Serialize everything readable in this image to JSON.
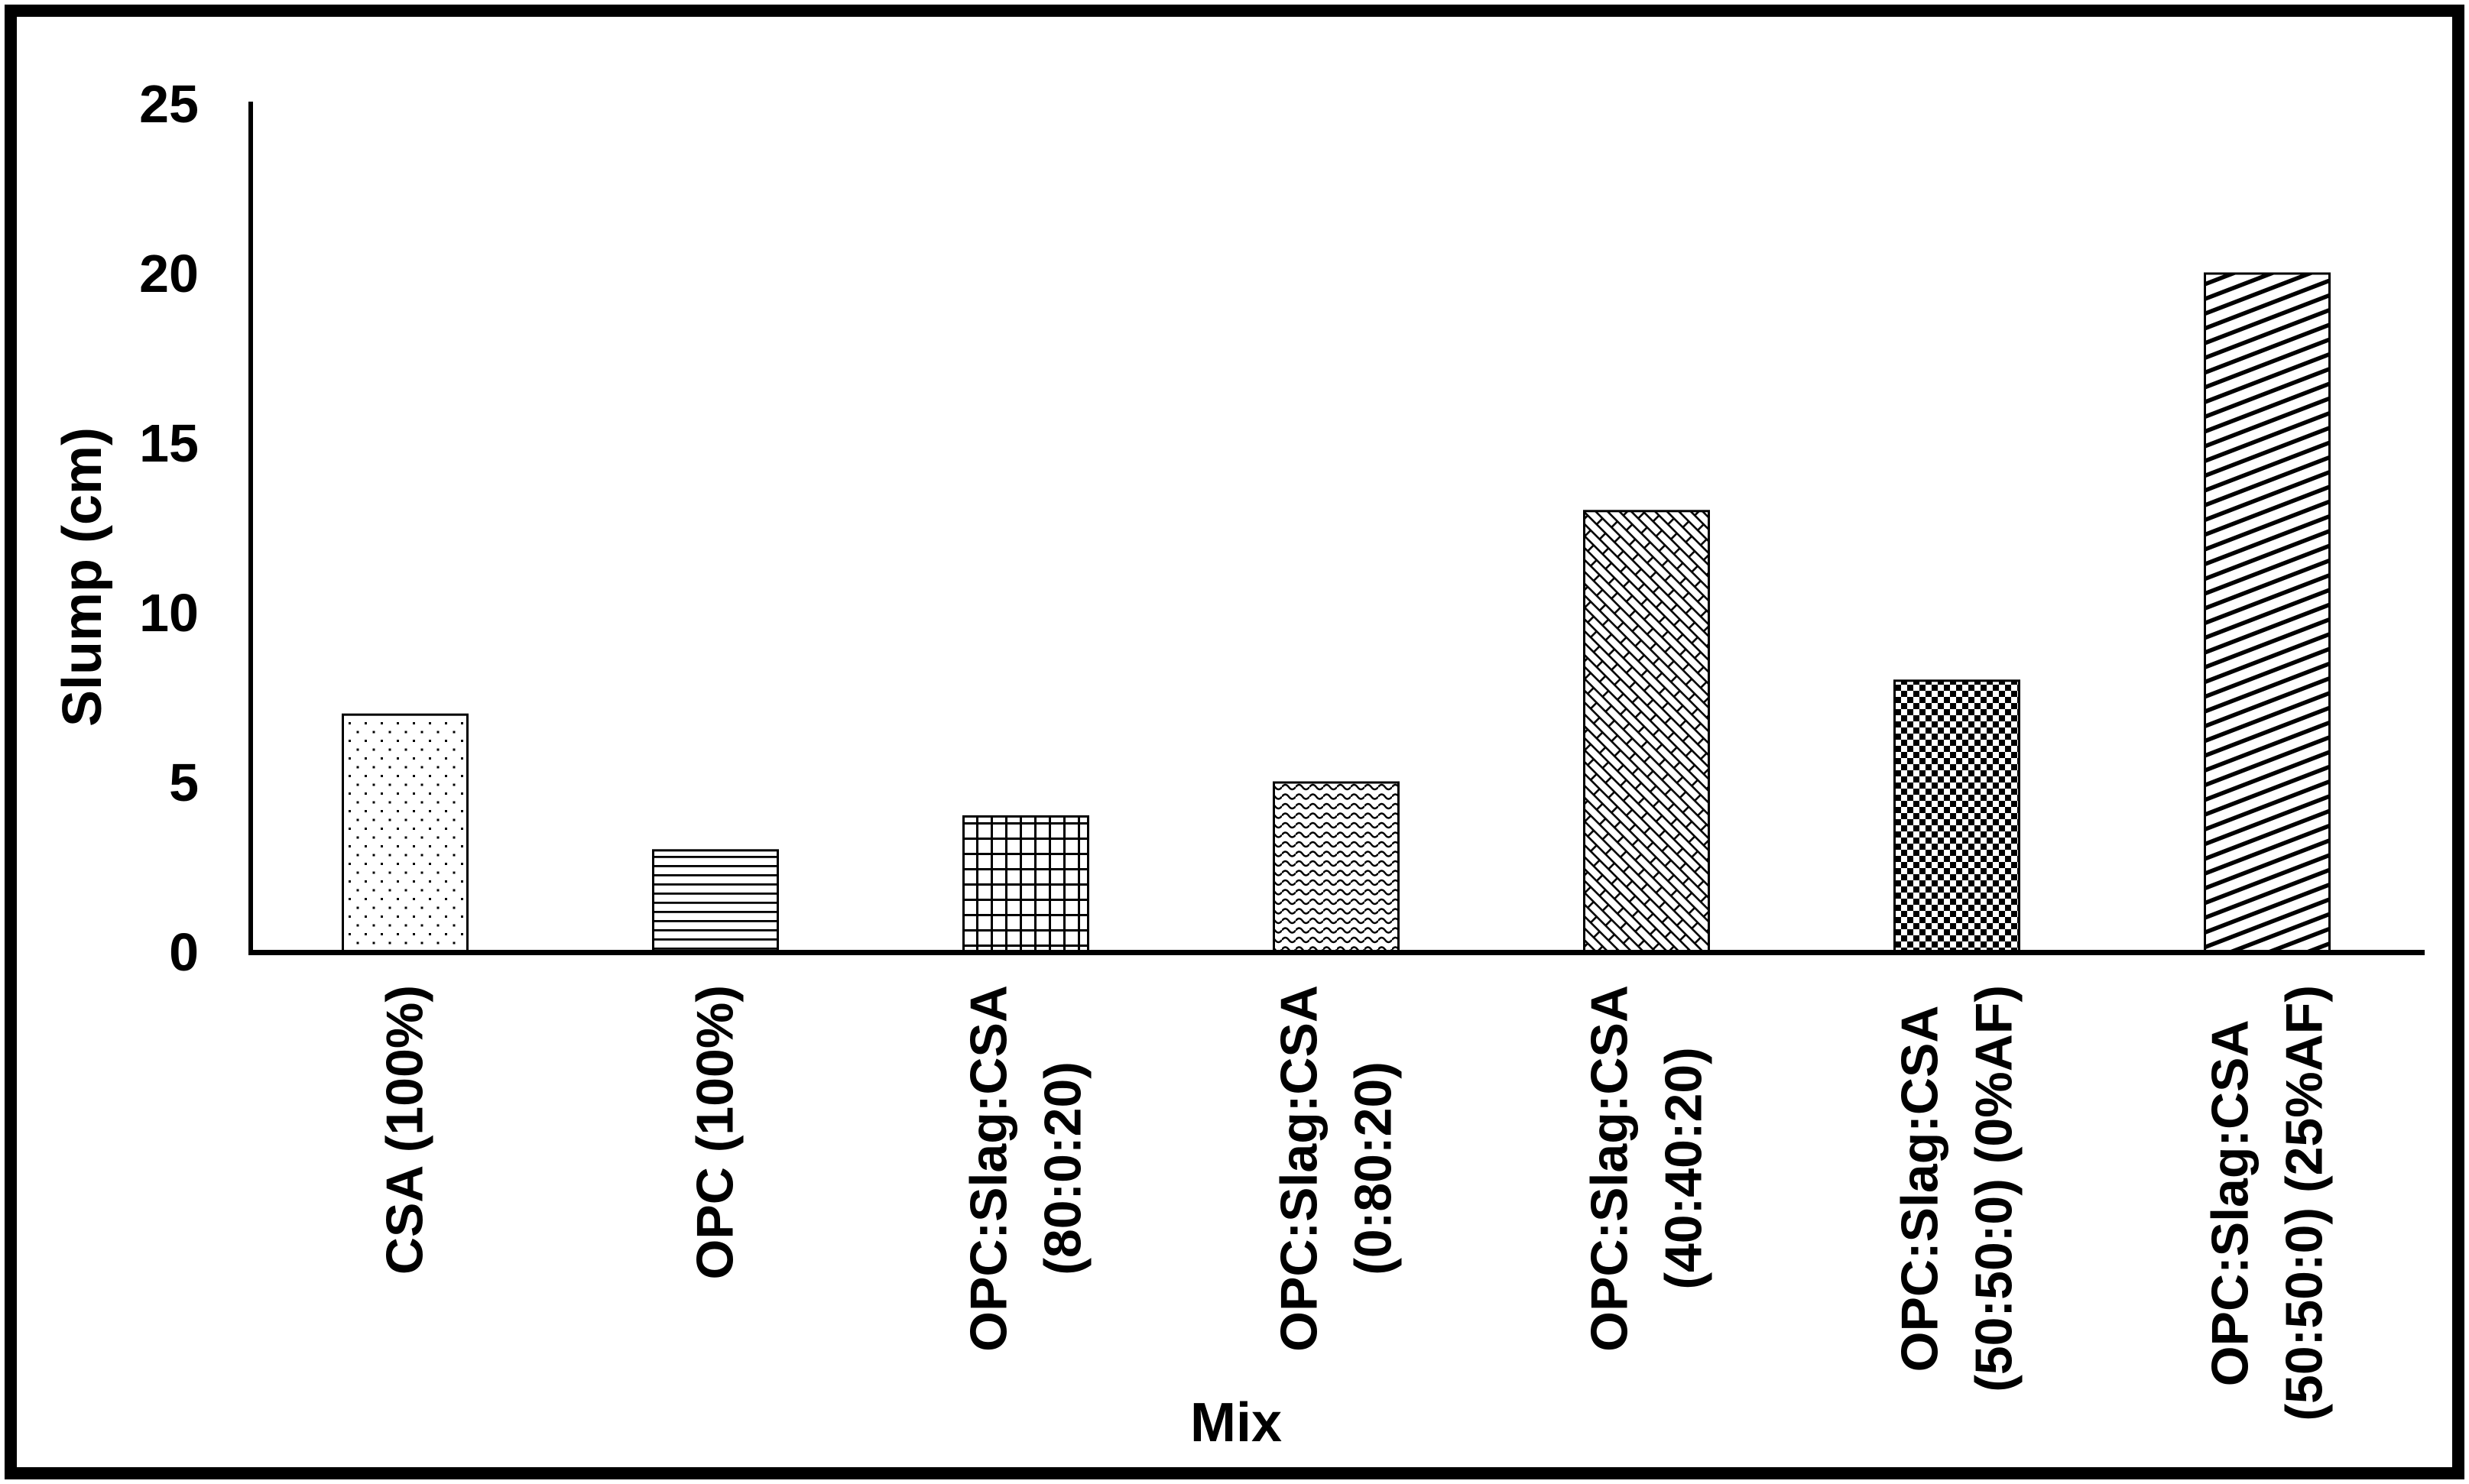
{
  "chart_data": {
    "type": "bar",
    "title": "",
    "xlabel": "Mix",
    "ylabel": "Slump (cm)",
    "ylim": [
      0,
      25
    ],
    "yticks": [
      0,
      5,
      10,
      15,
      20,
      25
    ],
    "grid": false,
    "legend": false,
    "categories": [
      "CSA (100%)",
      "OPC (100%)",
      "OPC:Slag:CSA\n(80:0:20)",
      "OPC:Slag:CSA\n(0:80:20)",
      "OPC:Slag:CSA\n(40:40:20)",
      "OPC:Slag:CSA\n(50:50:0) (0%AF)",
      "OPC:Slag:CSA\n(50:50:0) (25%AF)"
    ],
    "values": [
      7,
      3,
      4,
      5,
      13,
      8,
      20
    ],
    "patterns": [
      "dots",
      "horizontal-lines",
      "grid",
      "wave",
      "diagonal-brick",
      "checkerboard",
      "diagonal-stripes"
    ],
    "bar_outline_color": "#000000",
    "pattern_color": "#000000",
    "background_color": "#ffffff",
    "border_color": "#000000"
  }
}
